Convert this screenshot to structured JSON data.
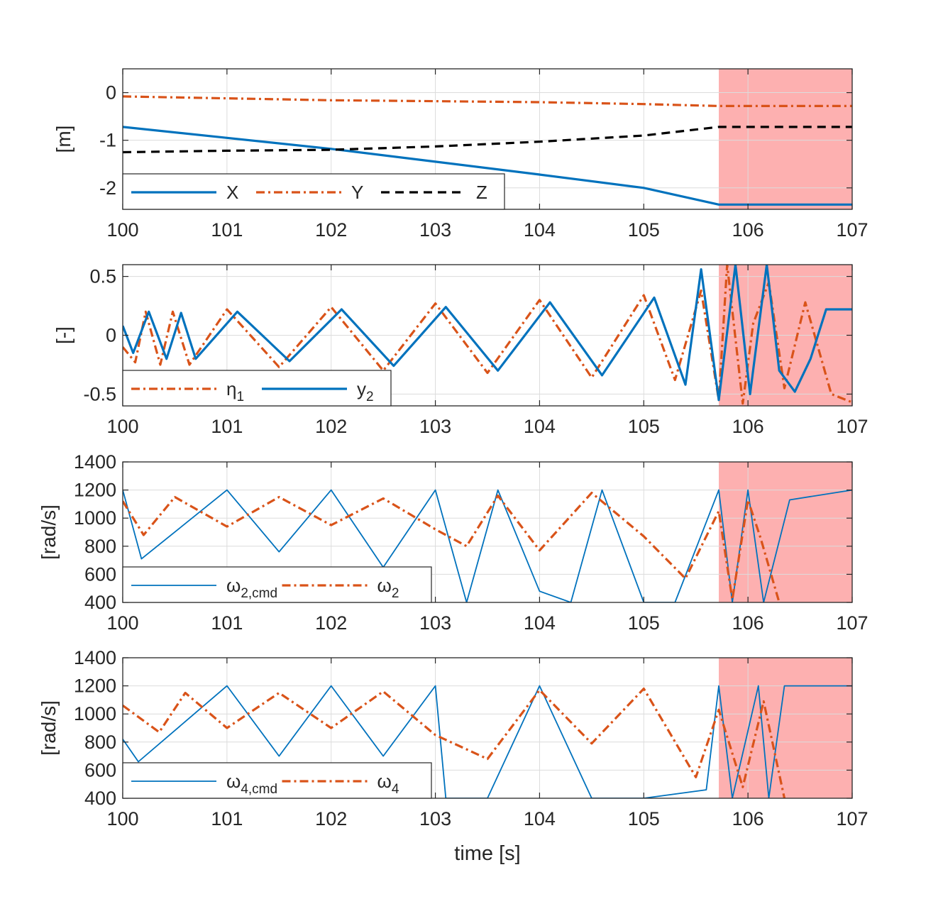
{
  "figure": {
    "xlabel": "time [s]",
    "shade_start": 105.72,
    "shade_color": "#fdb0b0"
  },
  "colors": {
    "blue": "#0072BD",
    "orange": "#D95319",
    "black": "#000000"
  },
  "chart_data": [
    {
      "type": "line",
      "ylabel": "[m]",
      "xlim": [
        100,
        107
      ],
      "ylim": [
        -2.45,
        0.5
      ],
      "xticks": [
        "100",
        "101",
        "102",
        "103",
        "104",
        "105",
        "106",
        "107"
      ],
      "yticks": [
        {
          "v": 0,
          "label": "0"
        },
        {
          "v": -1,
          "label": "-1"
        },
        {
          "v": -2,
          "label": "-2"
        }
      ],
      "series": [
        {
          "name": "X",
          "style": "solid",
          "x": [
            100,
            101,
            102,
            103,
            104,
            105,
            105.72,
            107
          ],
          "y": [
            -0.72,
            -0.95,
            -1.18,
            -1.45,
            -1.72,
            -2.0,
            -2.35,
            -2.35
          ]
        },
        {
          "name": "Y",
          "style": "dashdot",
          "x": [
            100,
            101,
            102,
            103,
            104,
            105,
            105.72,
            107
          ],
          "y": [
            -0.08,
            -0.12,
            -0.16,
            -0.18,
            -0.2,
            -0.24,
            -0.28,
            -0.28
          ]
        },
        {
          "name": "Z",
          "style": "dashed",
          "x": [
            100,
            101,
            102,
            103,
            104,
            105,
            105.72,
            107
          ],
          "y": [
            -1.25,
            -1.22,
            -1.2,
            -1.13,
            -1.03,
            -0.9,
            -0.72,
            -0.72
          ]
        }
      ],
      "legend": [
        {
          "label": "X",
          "sub": "",
          "color": "blue",
          "style": "solid"
        },
        {
          "label": "Y",
          "sub": "",
          "color": "orange",
          "style": "dashdot"
        },
        {
          "label": "Z",
          "sub": "",
          "color": "black",
          "style": "dashed"
        }
      ]
    },
    {
      "type": "line",
      "ylabel": "[-]",
      "xlim": [
        100,
        107
      ],
      "ylim": [
        -0.6,
        0.6
      ],
      "xticks": [
        "100",
        "101",
        "102",
        "103",
        "104",
        "105",
        "106",
        "107"
      ],
      "yticks": [
        {
          "v": 0.5,
          "label": "0.5"
        },
        {
          "v": 0,
          "label": "0"
        },
        {
          "v": -0.5,
          "label": "-0.5"
        }
      ],
      "series": [
        {
          "name": "η1",
          "style": "dashdot",
          "x": [
            100.0,
            100.12,
            100.22,
            100.36,
            100.48,
            100.64,
            101.0,
            101.5,
            102.0,
            102.5,
            103.0,
            103.5,
            104.0,
            104.5,
            105.0,
            105.3,
            105.55,
            105.72,
            105.8,
            105.95,
            106.05,
            106.2,
            106.35,
            106.55,
            106.8,
            107.0
          ],
          "y": [
            -0.1,
            -0.23,
            0.2,
            -0.25,
            0.2,
            -0.25,
            0.22,
            -0.27,
            0.24,
            -0.3,
            0.27,
            -0.32,
            0.3,
            -0.36,
            0.34,
            -0.38,
            0.38,
            -0.55,
            0.6,
            -0.58,
            0.1,
            0.45,
            -0.45,
            0.28,
            -0.5,
            -0.57
          ]
        },
        {
          "name": "y2",
          "style": "solid",
          "x": [
            100.0,
            100.1,
            100.25,
            100.42,
            100.56,
            100.7,
            101.1,
            101.6,
            102.1,
            102.6,
            103.1,
            103.6,
            104.1,
            104.6,
            105.1,
            105.4,
            105.55,
            105.72,
            105.88,
            106.02,
            106.18,
            106.3,
            106.45,
            106.6,
            106.75,
            107.0
          ],
          "y": [
            0.08,
            -0.15,
            0.2,
            -0.2,
            0.19,
            -0.2,
            0.2,
            -0.22,
            0.22,
            -0.26,
            0.24,
            -0.3,
            0.28,
            -0.34,
            0.32,
            -0.42,
            0.56,
            -0.55,
            0.6,
            -0.5,
            0.6,
            -0.3,
            -0.48,
            -0.2,
            0.22,
            0.22
          ]
        }
      ],
      "legend": [
        {
          "label": "η",
          "sub": "1",
          "color": "orange",
          "style": "dashdot"
        },
        {
          "label": "y",
          "sub": "2",
          "color": "blue",
          "style": "solid"
        }
      ]
    },
    {
      "type": "line",
      "ylabel": "[rad/s]",
      "xlim": [
        100,
        107
      ],
      "ylim": [
        400,
        1400
      ],
      "xticks": [
        "100",
        "101",
        "102",
        "103",
        "104",
        "105",
        "106",
        "107"
      ],
      "yticks": [
        {
          "v": 1400,
          "label": "1400"
        },
        {
          "v": 1200,
          "label": "1200"
        },
        {
          "v": 1000,
          "label": "1000"
        },
        {
          "v": 800,
          "label": "800"
        },
        {
          "v": 600,
          "label": "600"
        },
        {
          "v": 400,
          "label": "400"
        }
      ],
      "series": [
        {
          "name": "ω2,cmd",
          "style": "thin",
          "x": [
            100.0,
            100.18,
            101.0,
            101.5,
            102.0,
            102.5,
            103.0,
            103.3,
            103.6,
            104.0,
            104.3,
            104.6,
            105.0,
            105.3,
            105.72,
            105.85,
            106.0,
            106.15,
            106.4,
            107.0
          ],
          "y": [
            1200,
            710,
            1200,
            760,
            1200,
            650,
            1200,
            400,
            1200,
            480,
            400,
            1200,
            400,
            400,
            1200,
            400,
            1200,
            400,
            1130,
            1200
          ]
        },
        {
          "name": "ω2",
          "style": "dashdot",
          "x": [
            100.0,
            100.2,
            100.5,
            101.0,
            101.5,
            102.0,
            102.5,
            103.0,
            103.3,
            103.6,
            104.0,
            104.5,
            105.0,
            105.4,
            105.72,
            105.85,
            106.0,
            106.12,
            106.3
          ],
          "y": [
            1120,
            880,
            1150,
            940,
            1150,
            950,
            1140,
            920,
            800,
            1160,
            770,
            1180,
            870,
            570,
            1050,
            420,
            1130,
            860,
            400
          ]
        }
      ],
      "legend": [
        {
          "label": "ω",
          "sub": "2,cmd",
          "color": "blue",
          "style": "thin"
        },
        {
          "label": "ω",
          "sub": "2",
          "color": "orange",
          "style": "dashdot"
        }
      ]
    },
    {
      "type": "line",
      "ylabel": "[rad/s]",
      "xlim": [
        100,
        107
      ],
      "ylim": [
        400,
        1400
      ],
      "xticks": [
        "100",
        "101",
        "102",
        "103",
        "104",
        "105",
        "106",
        "107"
      ],
      "yticks": [
        {
          "v": 1400,
          "label": "1400"
        },
        {
          "v": 1200,
          "label": "1200"
        },
        {
          "v": 1000,
          "label": "1000"
        },
        {
          "v": 800,
          "label": "800"
        },
        {
          "v": 600,
          "label": "600"
        },
        {
          "v": 400,
          "label": "400"
        }
      ],
      "series": [
        {
          "name": "ω4,cmd",
          "style": "thin",
          "x": [
            100.0,
            100.15,
            101.0,
            101.5,
            102.0,
            102.5,
            103.0,
            103.1,
            103.5,
            104.0,
            104.5,
            105.0,
            105.6,
            105.72,
            105.85,
            106.1,
            106.2,
            106.35,
            107.0
          ],
          "y": [
            820,
            660,
            1200,
            700,
            1200,
            700,
            1200,
            400,
            400,
            1200,
            400,
            400,
            460,
            1200,
            400,
            1200,
            400,
            1200,
            1200
          ]
        },
        {
          "name": "ω4",
          "style": "dashdot",
          "x": [
            100.0,
            100.35,
            100.6,
            101.0,
            101.5,
            102.0,
            102.5,
            103.0,
            103.5,
            104.0,
            104.5,
            105.0,
            105.5,
            105.72,
            105.95,
            106.15,
            106.35
          ],
          "y": [
            1060,
            870,
            1150,
            900,
            1150,
            900,
            1160,
            850,
            680,
            1170,
            790,
            1180,
            550,
            1030,
            480,
            1090,
            400
          ]
        }
      ],
      "legend": [
        {
          "label": "ω",
          "sub": "4,cmd",
          "color": "blue",
          "style": "thin"
        },
        {
          "label": "ω",
          "sub": "4",
          "color": "orange",
          "style": "dashdot"
        }
      ]
    }
  ]
}
